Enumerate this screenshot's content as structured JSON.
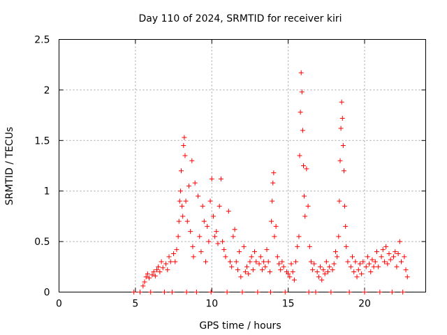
{
  "chart_data": {
    "type": "scatter",
    "title": "Day 110 of 2024, SRMTID for receiver kiri",
    "xlabel": "GPS time / hours",
    "ylabel": "SRMTID / TECUs",
    "xlim": [
      0,
      24
    ],
    "ylim": [
      0,
      2.5
    ],
    "xticks": [
      0,
      5,
      10,
      15,
      20
    ],
    "yticks": [
      0,
      0.5,
      1,
      1.5,
      2,
      2.5
    ],
    "x_tick_labels": [
      "0",
      "5",
      "10",
      "15",
      "20"
    ],
    "y_tick_labels": [
      "0",
      "0.5",
      "1",
      "1.5",
      "2",
      "2.5"
    ],
    "grid": true,
    "marker": "+",
    "color": "#ff0000",
    "series": [
      {
        "name": "SRMTID",
        "points": [
          [
            4.9,
            0.0
          ],
          [
            5.3,
            0.0
          ],
          [
            5.5,
            0.06
          ],
          [
            5.6,
            0.1
          ],
          [
            5.7,
            0.15
          ],
          [
            5.8,
            0.18
          ],
          [
            5.9,
            0.14
          ],
          [
            6.0,
            0.0
          ],
          [
            6.1,
            0.17
          ],
          [
            6.2,
            0.2
          ],
          [
            6.3,
            0.16
          ],
          [
            6.4,
            0.22
          ],
          [
            6.5,
            0.25
          ],
          [
            6.6,
            0.2
          ],
          [
            6.7,
            0.3
          ],
          [
            6.8,
            0.24
          ],
          [
            6.9,
            0.0
          ],
          [
            7.0,
            0.28
          ],
          [
            7.1,
            0.22
          ],
          [
            7.2,
            0.35
          ],
          [
            7.3,
            0.3
          ],
          [
            7.4,
            0.0
          ],
          [
            7.5,
            0.38
          ],
          [
            7.6,
            0.3
          ],
          [
            7.7,
            0.42
          ],
          [
            7.8,
            0.55
          ],
          [
            7.85,
            0.7
          ],
          [
            7.9,
            0.9
          ],
          [
            7.95,
            1.0
          ],
          [
            8.0,
            1.2
          ],
          [
            8.05,
            0.85
          ],
          [
            8.1,
            0.75
          ],
          [
            8.15,
            1.45
          ],
          [
            8.2,
            1.53
          ],
          [
            8.25,
            1.35
          ],
          [
            8.3,
            0.9
          ],
          [
            8.35,
            0.0
          ],
          [
            8.4,
            0.7
          ],
          [
            8.5,
            1.05
          ],
          [
            8.6,
            0.6
          ],
          [
            8.7,
            1.3
          ],
          [
            8.75,
            0.45
          ],
          [
            8.8,
            0.35
          ],
          [
            8.9,
            1.08
          ],
          [
            9.0,
            0.0
          ],
          [
            9.1,
            0.95
          ],
          [
            9.2,
            0.55
          ],
          [
            9.3,
            0.4
          ],
          [
            9.4,
            0.85
          ],
          [
            9.5,
            0.7
          ],
          [
            9.6,
            0.3
          ],
          [
            9.7,
            0.65
          ],
          [
            9.8,
            0.5
          ],
          [
            9.9,
            0.9
          ],
          [
            9.95,
            0.0
          ],
          [
            10.0,
            1.12
          ],
          [
            10.1,
            0.75
          ],
          [
            10.2,
            0.55
          ],
          [
            10.3,
            0.6
          ],
          [
            10.4,
            0.48
          ],
          [
            10.5,
            0.85
          ],
          [
            10.6,
            1.12
          ],
          [
            10.7,
            0.5
          ],
          [
            10.8,
            0.42
          ],
          [
            10.9,
            0.35
          ],
          [
            11.0,
            0.0
          ],
          [
            11.1,
            0.8
          ],
          [
            11.2,
            0.3
          ],
          [
            11.3,
            0.25
          ],
          [
            11.4,
            0.55
          ],
          [
            11.5,
            0.62
          ],
          [
            11.6,
            0.3
          ],
          [
            11.7,
            0.22
          ],
          [
            11.8,
            0.4
          ],
          [
            11.9,
            0.15
          ],
          [
            12.0,
            0.0
          ],
          [
            12.1,
            0.45
          ],
          [
            12.2,
            0.2
          ],
          [
            12.3,
            0.25
          ],
          [
            12.4,
            0.18
          ],
          [
            12.5,
            0.3
          ],
          [
            12.6,
            0.35
          ],
          [
            12.7,
            0.22
          ],
          [
            12.8,
            0.4
          ],
          [
            12.9,
            0.3
          ],
          [
            13.0,
            0.0
          ],
          [
            13.1,
            0.28
          ],
          [
            13.2,
            0.35
          ],
          [
            13.3,
            0.22
          ],
          [
            13.4,
            0.3
          ],
          [
            13.5,
            0.25
          ],
          [
            13.6,
            0.42
          ],
          [
            13.7,
            0.3
          ],
          [
            13.8,
            0.2
          ],
          [
            13.85,
            0.0
          ],
          [
            13.9,
            0.7
          ],
          [
            13.95,
            0.9
          ],
          [
            14.0,
            1.08
          ],
          [
            14.05,
            1.18
          ],
          [
            14.1,
            0.55
          ],
          [
            14.2,
            0.65
          ],
          [
            14.3,
            0.35
          ],
          [
            14.4,
            0.28
          ],
          [
            14.5,
            0.22
          ],
          [
            14.6,
            0.3
          ],
          [
            14.7,
            0.25
          ],
          [
            14.8,
            0.0
          ],
          [
            14.9,
            0.2
          ],
          [
            15.0,
            0.18
          ],
          [
            15.1,
            0.15
          ],
          [
            15.2,
            0.28
          ],
          [
            15.3,
            0.2
          ],
          [
            15.4,
            0.12
          ],
          [
            15.5,
            0.3
          ],
          [
            15.6,
            0.45
          ],
          [
            15.7,
            0.55
          ],
          [
            15.75,
            1.35
          ],
          [
            15.8,
            1.78
          ],
          [
            15.85,
            2.17
          ],
          [
            15.9,
            1.98
          ],
          [
            15.95,
            1.6
          ],
          [
            16.0,
            1.25
          ],
          [
            16.05,
            0.95
          ],
          [
            16.1,
            0.75
          ],
          [
            16.2,
            1.22
          ],
          [
            16.3,
            0.85
          ],
          [
            16.35,
            0.0
          ],
          [
            16.4,
            0.45
          ],
          [
            16.5,
            0.3
          ],
          [
            16.6,
            0.22
          ],
          [
            16.7,
            0.28
          ],
          [
            16.8,
            0.0
          ],
          [
            16.9,
            0.2
          ],
          [
            17.0,
            0.15
          ],
          [
            17.1,
            0.25
          ],
          [
            17.2,
            0.12
          ],
          [
            17.3,
            0.22
          ],
          [
            17.4,
            0.18
          ],
          [
            17.5,
            0.3
          ],
          [
            17.6,
            0.2
          ],
          [
            17.7,
            0.25
          ],
          [
            17.8,
            0.0
          ],
          [
            17.9,
            0.22
          ],
          [
            18.0,
            0.28
          ],
          [
            18.1,
            0.4
          ],
          [
            18.2,
            0.35
          ],
          [
            18.3,
            0.55
          ],
          [
            18.35,
            0.9
          ],
          [
            18.4,
            1.3
          ],
          [
            18.45,
            1.62
          ],
          [
            18.5,
            1.88
          ],
          [
            18.55,
            1.72
          ],
          [
            18.6,
            1.45
          ],
          [
            18.65,
            1.2
          ],
          [
            18.7,
            0.85
          ],
          [
            18.75,
            0.65
          ],
          [
            18.8,
            0.45
          ],
          [
            18.9,
            0.3
          ],
          [
            19.0,
            0.0
          ],
          [
            19.1,
            0.25
          ],
          [
            19.2,
            0.35
          ],
          [
            19.3,
            0.2
          ],
          [
            19.4,
            0.3
          ],
          [
            19.5,
            0.15
          ],
          [
            19.6,
            0.22
          ],
          [
            19.7,
            0.28
          ],
          [
            19.8,
            0.18
          ],
          [
            19.9,
            0.3
          ],
          [
            20.0,
            0.0
          ],
          [
            20.1,
            0.25
          ],
          [
            20.2,
            0.35
          ],
          [
            20.3,
            0.28
          ],
          [
            20.4,
            0.2
          ],
          [
            20.5,
            0.32
          ],
          [
            20.6,
            0.25
          ],
          [
            20.7,
            0.3
          ],
          [
            20.8,
            0.4
          ],
          [
            20.9,
            0.25
          ],
          [
            21.0,
            0.0
          ],
          [
            21.1,
            0.35
          ],
          [
            21.2,
            0.42
          ],
          [
            21.3,
            0.3
          ],
          [
            21.4,
            0.45
          ],
          [
            21.5,
            0.28
          ],
          [
            21.6,
            0.38
          ],
          [
            21.7,
            0.32
          ],
          [
            21.8,
            0.0
          ],
          [
            21.9,
            0.35
          ],
          [
            22.0,
            0.4
          ],
          [
            22.1,
            0.25
          ],
          [
            22.2,
            0.38
          ],
          [
            22.3,
            0.5
          ],
          [
            22.4,
            0.3
          ],
          [
            22.5,
            0.0
          ],
          [
            22.6,
            0.35
          ],
          [
            22.7,
            0.22
          ],
          [
            22.8,
            0.15
          ]
        ]
      }
    ]
  }
}
